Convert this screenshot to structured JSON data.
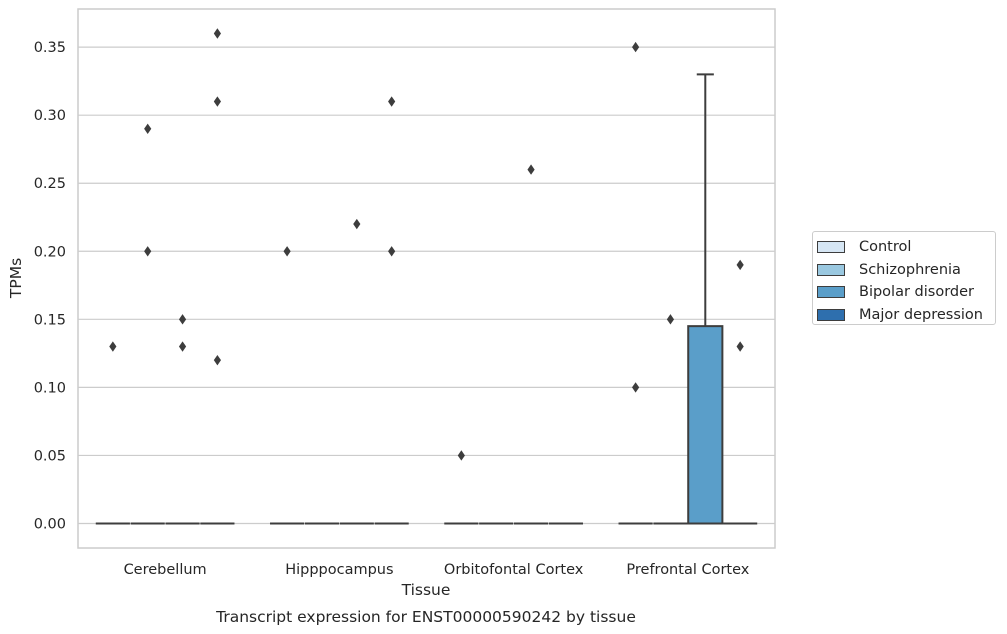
{
  "chart_data": {
    "type": "box",
    "title": "Transcript expression for ENST00000590242 by tissue",
    "xlabel": "Tissue",
    "ylabel": "TPMs",
    "ylim": [
      -0.018,
      0.378
    ],
    "yticks": [
      0.0,
      0.05,
      0.1,
      0.15,
      0.2,
      0.25,
      0.3,
      0.35
    ],
    "ytick_labels": [
      "0.00",
      "0.05",
      "0.10",
      "0.15",
      "0.20",
      "0.25",
      "0.30",
      "0.35"
    ],
    "grid": "horizontal",
    "legend_position": "right",
    "categories": [
      "Cerebellum",
      "Hipppocampus",
      "Orbitofontal Cortex",
      "Prefrontal Cortex"
    ],
    "series": [
      {
        "name": "Control",
        "color": "#d6e6f4",
        "boxes": [
          {
            "category": "Cerebellum",
            "q1": 0,
            "median": 0,
            "q3": 0,
            "whisker_low": 0,
            "whisker_high": 0,
            "outliers": [
              0.13
            ]
          },
          {
            "category": "Hipppocampus",
            "q1": 0,
            "median": 0,
            "q3": 0,
            "whisker_low": 0,
            "whisker_high": 0,
            "outliers": [
              0.2
            ]
          },
          {
            "category": "Orbitofontal Cortex",
            "q1": 0,
            "median": 0,
            "q3": 0,
            "whisker_low": 0,
            "whisker_high": 0,
            "outliers": [
              0.05
            ]
          },
          {
            "category": "Prefrontal Cortex",
            "q1": 0,
            "median": 0,
            "q3": 0,
            "whisker_low": 0,
            "whisker_high": 0,
            "outliers": [
              0.1,
              0.35
            ]
          }
        ]
      },
      {
        "name": "Schizophrenia",
        "color": "#9ac8e0",
        "boxes": [
          {
            "category": "Cerebellum",
            "q1": 0,
            "median": 0,
            "q3": 0,
            "whisker_low": 0,
            "whisker_high": 0,
            "outliers": [
              0.2,
              0.29
            ]
          },
          {
            "category": "Hipppocampus",
            "q1": 0,
            "median": 0,
            "q3": 0,
            "whisker_low": 0,
            "whisker_high": 0,
            "outliers": []
          },
          {
            "category": "Orbitofontal Cortex",
            "q1": 0,
            "median": 0,
            "q3": 0,
            "whisker_low": 0,
            "whisker_high": 0,
            "outliers": []
          },
          {
            "category": "Prefrontal Cortex",
            "q1": 0,
            "median": 0,
            "q3": 0,
            "whisker_low": 0,
            "whisker_high": 0,
            "outliers": [
              0.15
            ]
          }
        ]
      },
      {
        "name": "Bipolar disorder",
        "color": "#5a9ec9",
        "boxes": [
          {
            "category": "Cerebellum",
            "q1": 0,
            "median": 0,
            "q3": 0,
            "whisker_low": 0,
            "whisker_high": 0,
            "outliers": [
              0.13,
              0.15
            ]
          },
          {
            "category": "Hipppocampus",
            "q1": 0,
            "median": 0,
            "q3": 0,
            "whisker_low": 0,
            "whisker_high": 0,
            "outliers": [
              0.22
            ]
          },
          {
            "category": "Orbitofontal Cortex",
            "q1": 0,
            "median": 0,
            "q3": 0,
            "whisker_low": 0,
            "whisker_high": 0,
            "outliers": [
              0.26
            ]
          },
          {
            "category": "Prefrontal Cortex",
            "q1": 0,
            "median": 0,
            "q3": 0.145,
            "whisker_low": 0,
            "whisker_high": 0.33,
            "outliers": []
          }
        ]
      },
      {
        "name": "Major depression",
        "color": "#2e6fae",
        "boxes": [
          {
            "category": "Cerebellum",
            "q1": 0,
            "median": 0,
            "q3": 0,
            "whisker_low": 0,
            "whisker_high": 0,
            "outliers": [
              0.12,
              0.31,
              0.36
            ]
          },
          {
            "category": "Hipppocampus",
            "q1": 0,
            "median": 0,
            "q3": 0,
            "whisker_low": 0,
            "whisker_high": 0,
            "outliers": [
              0.2,
              0.31
            ]
          },
          {
            "category": "Orbitofontal Cortex",
            "q1": 0,
            "median": 0,
            "q3": 0,
            "whisker_low": 0,
            "whisker_high": 0,
            "outliers": []
          },
          {
            "category": "Prefrontal Cortex",
            "q1": 0,
            "median": 0,
            "q3": 0,
            "whisker_low": 0,
            "whisker_high": 0,
            "outliers": [
              0.13,
              0.19
            ]
          }
        ]
      }
    ]
  }
}
